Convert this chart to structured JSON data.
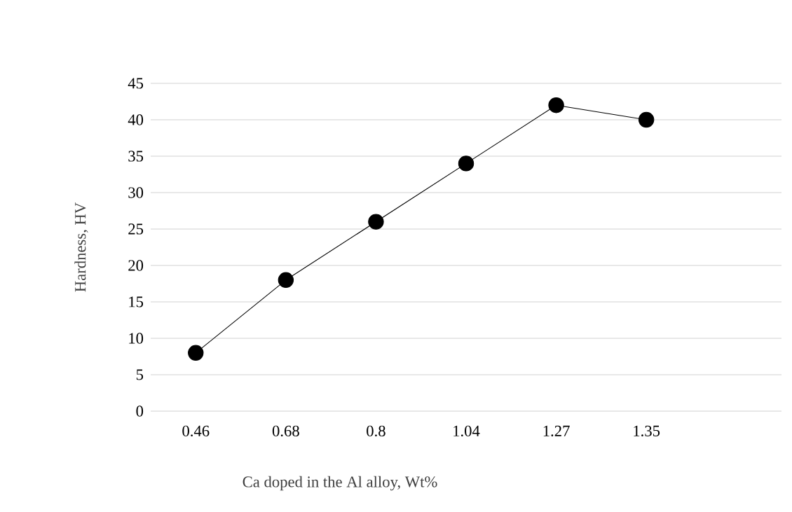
{
  "chart_data": {
    "type": "line",
    "xlabel": "Ca doped in the Al alloy,  Wt%",
    "ylabel": "Hardness,  HV",
    "categories": [
      "0.46",
      "0.68",
      "0.8",
      "1.04",
      "1.27",
      "1.35",
      null
    ],
    "values": [
      8,
      18,
      26,
      34,
      42,
      40,
      null
    ],
    "color": "#000000",
    "marker": "circle",
    "line_style": "solid",
    "ylim": [
      0,
      45
    ],
    "yticks": [
      0,
      5,
      10,
      15,
      20,
      25,
      30,
      35,
      40,
      45
    ],
    "grid": "y"
  }
}
